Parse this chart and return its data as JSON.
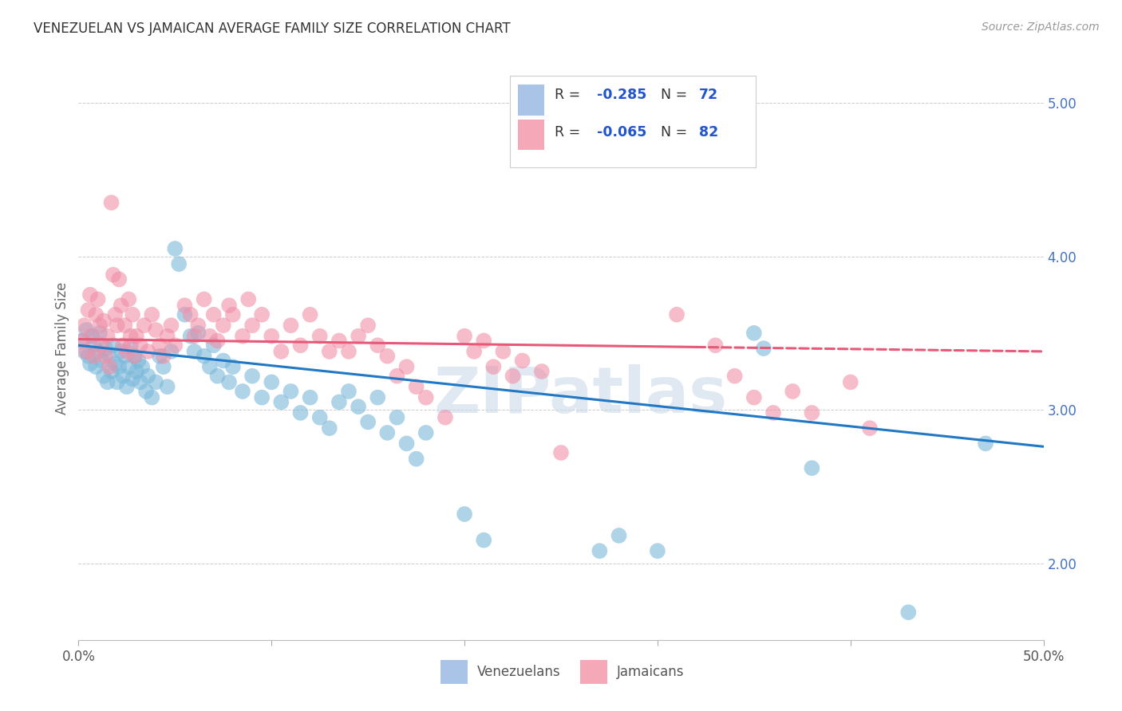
{
  "title": "VENEZUELAN VS JAMAICAN AVERAGE FAMILY SIZE CORRELATION CHART",
  "source": "Source: ZipAtlas.com",
  "ylabel": "Average Family Size",
  "yticks": [
    2.0,
    3.0,
    4.0,
    5.0
  ],
  "xlim": [
    0.0,
    0.5
  ],
  "ylim": [
    1.5,
    5.3
  ],
  "watermark": "ZIPatlas",
  "venezuelan_color": "#7ab8d9",
  "jamaican_color": "#f090a8",
  "venezuelan_line_color": "#2178c4",
  "jamaican_line_color": "#e85878",
  "ven_line": [
    3.42,
    2.76
  ],
  "jam_line": [
    3.46,
    3.38
  ],
  "venezuelan_scatter": [
    [
      0.002,
      3.45
    ],
    [
      0.003,
      3.38
    ],
    [
      0.004,
      3.52
    ],
    [
      0.005,
      3.35
    ],
    [
      0.006,
      3.3
    ],
    [
      0.007,
      3.48
    ],
    [
      0.008,
      3.42
    ],
    [
      0.009,
      3.28
    ],
    [
      0.01,
      3.38
    ],
    [
      0.011,
      3.5
    ],
    [
      0.012,
      3.32
    ],
    [
      0.013,
      3.22
    ],
    [
      0.014,
      3.4
    ],
    [
      0.015,
      3.18
    ],
    [
      0.016,
      3.35
    ],
    [
      0.017,
      3.25
    ],
    [
      0.018,
      3.42
    ],
    [
      0.019,
      3.3
    ],
    [
      0.02,
      3.18
    ],
    [
      0.021,
      3.28
    ],
    [
      0.022,
      3.38
    ],
    [
      0.023,
      3.22
    ],
    [
      0.024,
      3.35
    ],
    [
      0.025,
      3.15
    ],
    [
      0.026,
      3.28
    ],
    [
      0.027,
      3.42
    ],
    [
      0.028,
      3.2
    ],
    [
      0.029,
      3.35
    ],
    [
      0.03,
      3.25
    ],
    [
      0.031,
      3.32
    ],
    [
      0.032,
      3.18
    ],
    [
      0.033,
      3.28
    ],
    [
      0.035,
      3.12
    ],
    [
      0.036,
      3.22
    ],
    [
      0.038,
      3.08
    ],
    [
      0.04,
      3.18
    ],
    [
      0.042,
      3.35
    ],
    [
      0.044,
      3.28
    ],
    [
      0.046,
      3.15
    ],
    [
      0.048,
      3.38
    ],
    [
      0.05,
      4.05
    ],
    [
      0.052,
      3.95
    ],
    [
      0.055,
      3.62
    ],
    [
      0.058,
      3.48
    ],
    [
      0.06,
      3.38
    ],
    [
      0.062,
      3.5
    ],
    [
      0.065,
      3.35
    ],
    [
      0.068,
      3.28
    ],
    [
      0.07,
      3.42
    ],
    [
      0.072,
      3.22
    ],
    [
      0.075,
      3.32
    ],
    [
      0.078,
      3.18
    ],
    [
      0.08,
      3.28
    ],
    [
      0.085,
      3.12
    ],
    [
      0.09,
      3.22
    ],
    [
      0.095,
      3.08
    ],
    [
      0.1,
      3.18
    ],
    [
      0.105,
      3.05
    ],
    [
      0.11,
      3.12
    ],
    [
      0.115,
      2.98
    ],
    [
      0.12,
      3.08
    ],
    [
      0.125,
      2.95
    ],
    [
      0.13,
      2.88
    ],
    [
      0.135,
      3.05
    ],
    [
      0.14,
      3.12
    ],
    [
      0.145,
      3.02
    ],
    [
      0.15,
      2.92
    ],
    [
      0.155,
      3.08
    ],
    [
      0.16,
      2.85
    ],
    [
      0.165,
      2.95
    ],
    [
      0.17,
      2.78
    ],
    [
      0.175,
      2.68
    ],
    [
      0.18,
      2.85
    ],
    [
      0.2,
      2.32
    ],
    [
      0.21,
      2.15
    ],
    [
      0.27,
      2.08
    ],
    [
      0.28,
      2.18
    ],
    [
      0.3,
      2.08
    ],
    [
      0.35,
      3.5
    ],
    [
      0.355,
      3.4
    ],
    [
      0.38,
      2.62
    ],
    [
      0.43,
      1.68
    ],
    [
      0.47,
      2.78
    ]
  ],
  "jamaican_scatter": [
    [
      0.002,
      3.45
    ],
    [
      0.003,
      3.55
    ],
    [
      0.004,
      3.38
    ],
    [
      0.005,
      3.65
    ],
    [
      0.006,
      3.75
    ],
    [
      0.007,
      3.48
    ],
    [
      0.008,
      3.35
    ],
    [
      0.009,
      3.62
    ],
    [
      0.01,
      3.72
    ],
    [
      0.011,
      3.55
    ],
    [
      0.012,
      3.42
    ],
    [
      0.013,
      3.58
    ],
    [
      0.014,
      3.35
    ],
    [
      0.015,
      3.48
    ],
    [
      0.016,
      3.28
    ],
    [
      0.017,
      4.35
    ],
    [
      0.018,
      3.88
    ],
    [
      0.019,
      3.62
    ],
    [
      0.02,
      3.55
    ],
    [
      0.021,
      3.85
    ],
    [
      0.022,
      3.68
    ],
    [
      0.023,
      3.42
    ],
    [
      0.024,
      3.55
    ],
    [
      0.025,
      3.38
    ],
    [
      0.026,
      3.72
    ],
    [
      0.027,
      3.48
    ],
    [
      0.028,
      3.62
    ],
    [
      0.029,
      3.35
    ],
    [
      0.03,
      3.48
    ],
    [
      0.032,
      3.42
    ],
    [
      0.034,
      3.55
    ],
    [
      0.036,
      3.38
    ],
    [
      0.038,
      3.62
    ],
    [
      0.04,
      3.52
    ],
    [
      0.042,
      3.42
    ],
    [
      0.044,
      3.35
    ],
    [
      0.046,
      3.48
    ],
    [
      0.048,
      3.55
    ],
    [
      0.05,
      3.42
    ],
    [
      0.055,
      3.68
    ],
    [
      0.058,
      3.62
    ],
    [
      0.06,
      3.48
    ],
    [
      0.062,
      3.55
    ],
    [
      0.065,
      3.72
    ],
    [
      0.068,
      3.48
    ],
    [
      0.07,
      3.62
    ],
    [
      0.072,
      3.45
    ],
    [
      0.075,
      3.55
    ],
    [
      0.078,
      3.68
    ],
    [
      0.08,
      3.62
    ],
    [
      0.085,
      3.48
    ],
    [
      0.088,
      3.72
    ],
    [
      0.09,
      3.55
    ],
    [
      0.095,
      3.62
    ],
    [
      0.1,
      3.48
    ],
    [
      0.105,
      3.38
    ],
    [
      0.11,
      3.55
    ],
    [
      0.115,
      3.42
    ],
    [
      0.12,
      3.62
    ],
    [
      0.125,
      3.48
    ],
    [
      0.13,
      3.38
    ],
    [
      0.135,
      3.45
    ],
    [
      0.14,
      3.38
    ],
    [
      0.145,
      3.48
    ],
    [
      0.15,
      3.55
    ],
    [
      0.155,
      3.42
    ],
    [
      0.16,
      3.35
    ],
    [
      0.165,
      3.22
    ],
    [
      0.17,
      3.28
    ],
    [
      0.175,
      3.15
    ],
    [
      0.18,
      3.08
    ],
    [
      0.19,
      2.95
    ],
    [
      0.2,
      3.48
    ],
    [
      0.205,
      3.38
    ],
    [
      0.21,
      3.45
    ],
    [
      0.215,
      3.28
    ],
    [
      0.22,
      3.38
    ],
    [
      0.225,
      3.22
    ],
    [
      0.23,
      3.32
    ],
    [
      0.24,
      3.25
    ],
    [
      0.25,
      2.72
    ],
    [
      0.31,
      3.62
    ],
    [
      0.33,
      3.42
    ],
    [
      0.34,
      3.22
    ],
    [
      0.35,
      3.08
    ],
    [
      0.36,
      2.98
    ],
    [
      0.37,
      3.12
    ],
    [
      0.38,
      2.98
    ],
    [
      0.4,
      3.18
    ],
    [
      0.41,
      2.88
    ]
  ]
}
